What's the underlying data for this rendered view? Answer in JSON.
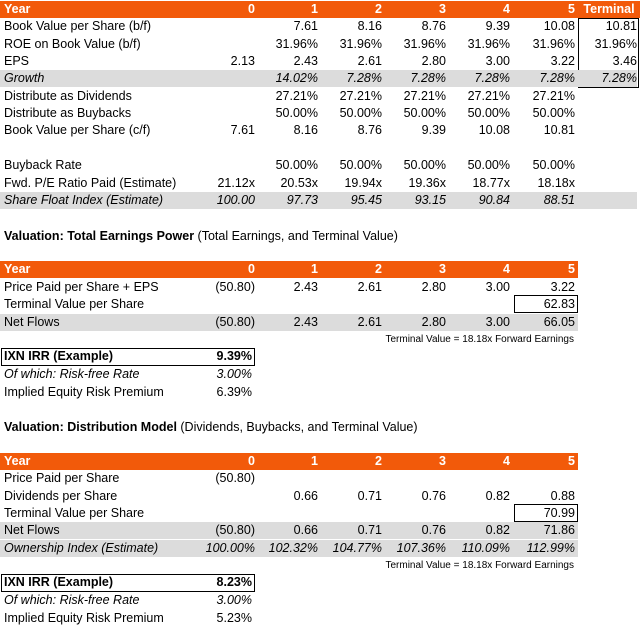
{
  "headers": {
    "year_label": "Year",
    "years": [
      "0",
      "1",
      "2",
      "3",
      "4",
      "5"
    ],
    "terminal_label": "Terminal"
  },
  "projection": {
    "rows": [
      {
        "label": "Book Value per Share (b/f)",
        "values": [
          "",
          "7.61",
          "8.16",
          "8.76",
          "9.39",
          "10.08"
        ],
        "terminal": "10.81"
      },
      {
        "label": "ROE on Book Value (b/f)",
        "values": [
          "",
          "31.96%",
          "31.96%",
          "31.96%",
          "31.96%",
          "31.96%"
        ],
        "terminal": "31.96%"
      },
      {
        "label": "EPS",
        "values": [
          "2.13",
          "2.43",
          "2.61",
          "2.80",
          "3.00",
          "3.22"
        ],
        "terminal": "3.46"
      },
      {
        "label": "Growth",
        "values": [
          "",
          "14.02%",
          "7.28%",
          "7.28%",
          "7.28%",
          "7.28%"
        ],
        "terminal": "7.28%"
      },
      {
        "label": "Distribute as Dividends",
        "values": [
          "",
          "27.21%",
          "27.21%",
          "27.21%",
          "27.21%",
          "27.21%"
        ],
        "terminal": ""
      },
      {
        "label": "Distribute as Buybacks",
        "values": [
          "",
          "50.00%",
          "50.00%",
          "50.00%",
          "50.00%",
          "50.00%"
        ],
        "terminal": ""
      },
      {
        "label": "Book Value per Share (c/f)",
        "values": [
          "7.61",
          "8.16",
          "8.76",
          "9.39",
          "10.08",
          "10.81"
        ],
        "terminal": ""
      },
      {
        "label": "Buyback Rate",
        "values": [
          "",
          "50.00%",
          "50.00%",
          "50.00%",
          "50.00%",
          "50.00%"
        ],
        "terminal": ""
      },
      {
        "label": "Fwd. P/E Ratio Paid (Estimate)",
        "values": [
          "21.12x",
          "20.53x",
          "19.94x",
          "19.36x",
          "18.77x",
          "18.18x"
        ],
        "terminal": ""
      },
      {
        "label": "Share Float Index (Estimate)",
        "values": [
          "100.00",
          "97.73",
          "95.45",
          "93.15",
          "90.84",
          "88.51"
        ],
        "terminal": ""
      }
    ]
  },
  "section1": {
    "title_bold": "Valuation: Total Earnings Power",
    "title_rest": " (Total Earnings, and Terminal Value)",
    "rows": [
      {
        "label": "Price Paid per Share + EPS",
        "values": [
          "(50.80)",
          "2.43",
          "2.61",
          "2.80",
          "3.00",
          "3.22"
        ]
      },
      {
        "label": "Terminal Value per Share",
        "values": [
          "",
          "",
          "",
          "",
          "",
          "62.83"
        ]
      },
      {
        "label": "Net Flows",
        "values": [
          "(50.80)",
          "2.43",
          "2.61",
          "2.80",
          "3.00",
          "66.05"
        ]
      }
    ],
    "note": "Terminal Value = 18.18x Forward Earnings",
    "irr_label": "IXN IRR (Example)",
    "irr_value": "9.39%",
    "rf_label": "Of which: Risk-free Rate",
    "rf_value": "3.00%",
    "erp_label": "Implied Equity Risk Premium",
    "erp_value": "6.39%"
  },
  "section2": {
    "title_bold": "Valuation: Distribution Model",
    "title_rest": " (Dividends, Buybacks, and Terminal Value)",
    "rows": [
      {
        "label": "Price Paid per Share",
        "values": [
          "(50.80)",
          "",
          "",
          "",
          "",
          ""
        ]
      },
      {
        "label": "Dividends per Share",
        "values": [
          "",
          "0.66",
          "0.71",
          "0.76",
          "0.82",
          "0.88"
        ]
      },
      {
        "label": "Terminal Value per Share",
        "values": [
          "",
          "",
          "",
          "",
          "",
          "70.99"
        ]
      },
      {
        "label": "Net Flows",
        "values": [
          "(50.80)",
          "0.66",
          "0.71",
          "0.76",
          "0.82",
          "71.86"
        ]
      },
      {
        "label": "Ownership Index (Estimate)",
        "values": [
          "100.00%",
          "102.32%",
          "104.77%",
          "107.36%",
          "110.09%",
          "112.99%"
        ]
      }
    ],
    "note": "Terminal Value = 18.18x Forward Earnings",
    "irr_label": "IXN IRR (Example)",
    "irr_value": "8.23%",
    "rf_label": "Of which: Risk-free Rate",
    "rf_value": "3.00%",
    "erp_label": "Implied Equity Risk Premium",
    "erp_value": "5.23%"
  }
}
